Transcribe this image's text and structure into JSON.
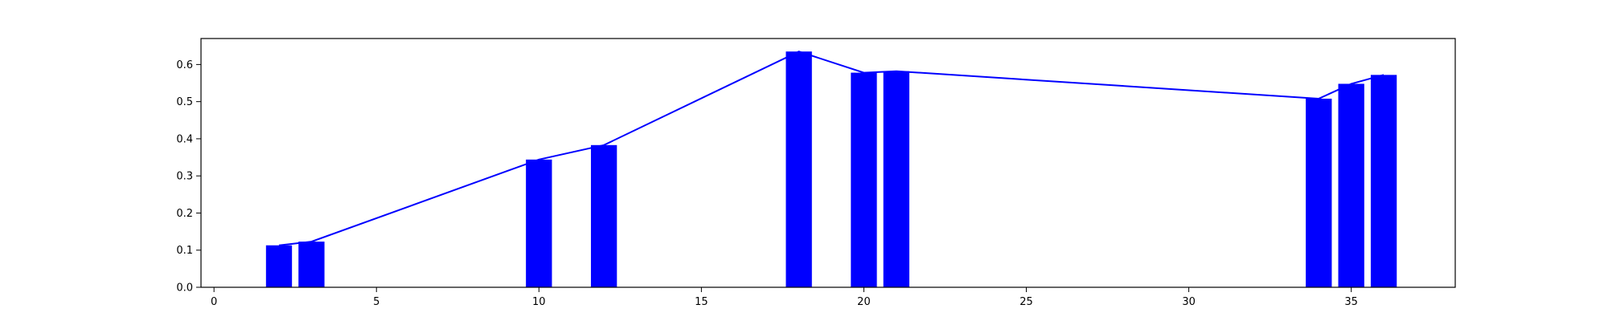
{
  "chart_data": {
    "type": "bar",
    "title": "",
    "xlabel": "",
    "ylabel": "",
    "xlim": [
      -0.4,
      38.2
    ],
    "ylim": [
      0.0,
      0.67
    ],
    "grid": false,
    "x_ticks": [
      0,
      5,
      10,
      15,
      20,
      25,
      30,
      35
    ],
    "y_ticks": [
      0.0,
      0.1,
      0.2,
      0.3,
      0.4,
      0.5,
      0.6
    ],
    "x_tick_labels": [
      "0",
      "5",
      "10",
      "15",
      "20",
      "25",
      "30",
      "35"
    ],
    "y_tick_labels": [
      "0.0",
      "0.1",
      "0.2",
      "0.3",
      "0.4",
      "0.5",
      "0.6"
    ],
    "bar_width": 0.8,
    "color": "#0000ff",
    "x": [
      2,
      3,
      10,
      12,
      18,
      20,
      21,
      34,
      35,
      36
    ],
    "values": [
      0.113,
      0.123,
      0.344,
      0.383,
      0.635,
      0.578,
      0.582,
      0.508,
      0.548,
      0.572
    ],
    "line_overlay": true
  }
}
